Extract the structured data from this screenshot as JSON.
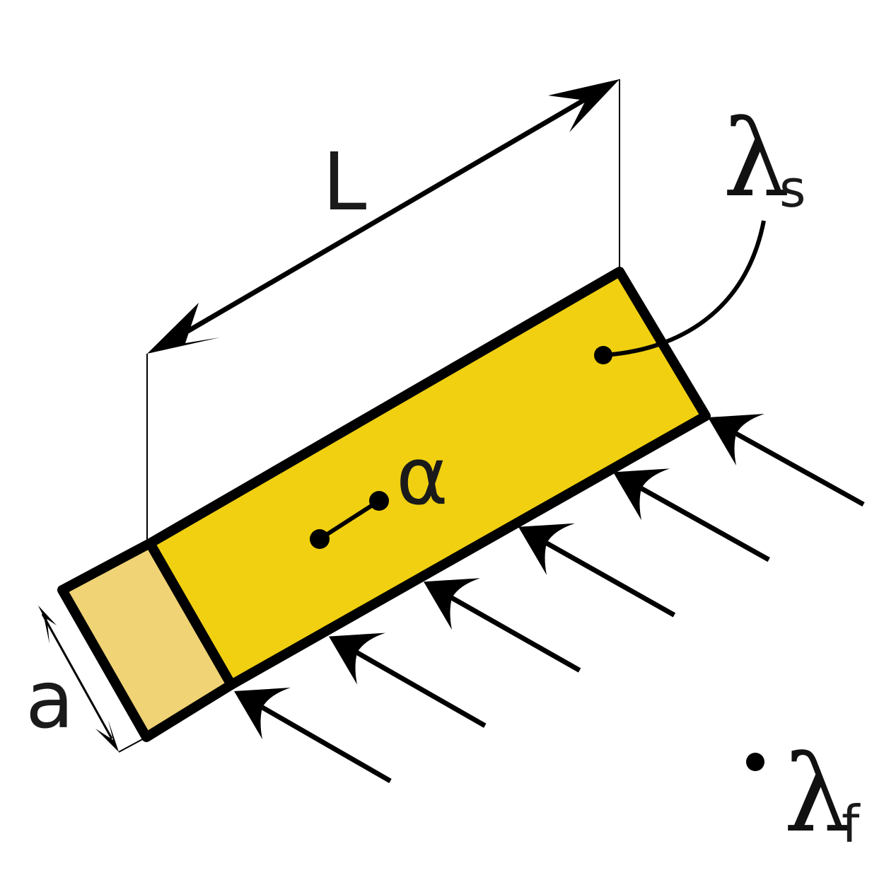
{
  "labels": {
    "length": "L",
    "width": "a",
    "angle": "α",
    "solid_lambda": "λ",
    "solid_sub": "s",
    "fluid_lambda": "λ",
    "fluid_sub": "f"
  },
  "colors": {
    "rod_body": "#f0d010",
    "rod_end_face": "#f0d375",
    "stroke": "#000000",
    "text": "#1a1a1a"
  },
  "flow_arrows": {
    "count": 6
  }
}
